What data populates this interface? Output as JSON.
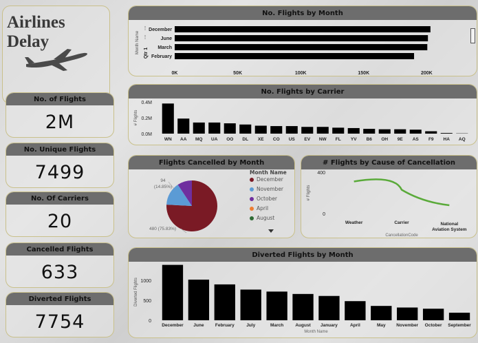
{
  "app": {
    "title": "Airlines Delay",
    "plane_icon": "airplane-icon"
  },
  "kpis": [
    {
      "title": "No. of Flights",
      "value": "2M"
    },
    {
      "title": "No. Unique Flights",
      "value": "7499"
    },
    {
      "title": "No. Of Carriers",
      "value": "20"
    },
    {
      "title": "Cancelled Flights",
      "value": "633"
    },
    {
      "title": "Diverted Flights",
      "value": "7754"
    }
  ],
  "chart_data": [
    {
      "id": "month",
      "type": "bar",
      "orientation": "horizontal",
      "title": "No. Flights by Month",
      "ylabel": "Month Name",
      "group_label": "Qtr 1",
      "categories": [
        "December",
        "June",
        "March",
        "February"
      ],
      "category_prefix": [
        "",
        "",
        "",
        ""
      ],
      "values": [
        203000,
        201000,
        200500,
        190000
      ],
      "xlim": [
        0,
        220000
      ],
      "xticks": [
        "0K",
        "50K",
        "100K",
        "150K",
        "200K"
      ],
      "tick_values": [
        0,
        50000,
        100000,
        150000,
        200000
      ],
      "color": "#000000"
    },
    {
      "id": "carrier",
      "type": "bar",
      "title": "No. Flights by Carrier",
      "ylabel": "# Flights",
      "categories": [
        "WN",
        "AA",
        "MQ",
        "UA",
        "OO",
        "DL",
        "XE",
        "CO",
        "US",
        "EV",
        "NW",
        "FL",
        "YV",
        "B6",
        "OH",
        "9E",
        "AS",
        "F9",
        "HA",
        "AQ"
      ],
      "values": [
        380000,
        190000,
        140000,
        140000,
        130000,
        115000,
        100000,
        95000,
        95000,
        85000,
        85000,
        75000,
        70000,
        60000,
        55000,
        55000,
        50000,
        30000,
        8000,
        3000
      ],
      "ylim": [
        0,
        400000
      ],
      "yticks": [
        "0.0M",
        "0.2M",
        "0.4M"
      ],
      "tick_values": [
        0,
        200000,
        400000
      ],
      "color": "#000000"
    },
    {
      "id": "cancelled",
      "type": "pie",
      "title": "Flights Cancelled by Month",
      "legend_title": "Month Name",
      "slices": [
        {
          "name": "December",
          "value": 480,
          "label": "480 (75.83%)",
          "color": "#7a1a25"
        },
        {
          "name": "November",
          "value": 94,
          "label": "94\n(14.85%)",
          "color": "#5b9bd5"
        },
        {
          "name": "October",
          "value": 59,
          "label": "",
          "color": "#6f2f9f"
        },
        {
          "name": "April",
          "value": 0,
          "label": "",
          "color": "#ed7d31"
        },
        {
          "name": "August",
          "value": 0,
          "label": "",
          "color": "#2e6b34"
        }
      ]
    },
    {
      "id": "cause",
      "type": "line",
      "title": "# Flights by Cause of Cancellation",
      "xlabel": "CancellationCode",
      "ylabel": "# Flights",
      "categories": [
        "Weather",
        "Carrier",
        "National Aviation System"
      ],
      "values": [
        310,
        230,
        80
      ],
      "ylim": [
        0,
        400
      ],
      "yticks": [
        "0",
        "200",
        "400"
      ],
      "tick_values": [
        0,
        200,
        400
      ],
      "color": "#5aaa3a"
    },
    {
      "id": "diverted",
      "type": "bar",
      "title": "Diverted Flights by Month",
      "xlabel": "Month Name",
      "ylabel": "Diverted Flights",
      "categories": [
        "December",
        "June",
        "February",
        "July",
        "March",
        "August",
        "January",
        "April",
        "May",
        "November",
        "October",
        "September"
      ],
      "values": [
        1390,
        1020,
        900,
        770,
        720,
        660,
        610,
        480,
        360,
        320,
        290,
        190
      ],
      "ylim": [
        0,
        1400
      ],
      "yticks": [
        "0",
        "500",
        "1000"
      ],
      "tick_values": [
        0,
        500,
        1000
      ],
      "color": "#000000"
    }
  ]
}
